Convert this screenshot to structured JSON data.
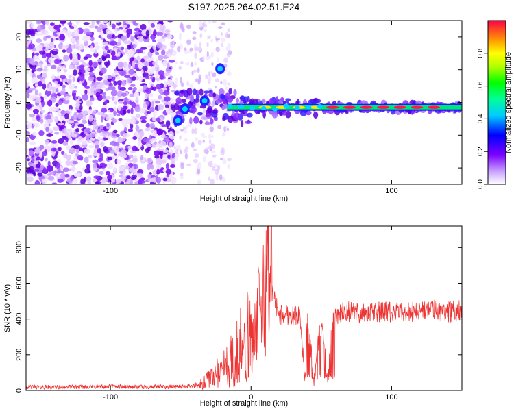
{
  "title": "S197.2025.264.02.51.E24",
  "chart_data": [
    {
      "type": "heatmap",
      "xlabel": "Height of straight line (km)",
      "ylabel": "Frequency (Hz)",
      "xlim": [
        -160,
        150
      ],
      "ylim": [
        -25,
        25
      ],
      "x_ticks": [
        -100,
        0,
        100
      ],
      "y_ticks": [
        -20,
        -10,
        0,
        10,
        20
      ],
      "colorbar": {
        "label": "Normalized spectral amplitude",
        "range": [
          0,
          1
        ],
        "ticks": [
          0.0,
          0.2,
          0.4,
          0.6,
          0.8
        ]
      },
      "features": [
        {
          "name": "carrier-line",
          "x_range": [
            -17,
            150
          ],
          "frequency": -1.5,
          "amplitude": 0.9
        },
        {
          "name": "blob-a",
          "x": -52,
          "frequency": -5.5,
          "amplitude": 0.35
        },
        {
          "name": "blob-b",
          "x": -47,
          "frequency": -2,
          "amplitude": 0.3
        },
        {
          "name": "blob-c",
          "x": -33,
          "frequency": 0.5,
          "amplitude": 0.3
        },
        {
          "name": "blob-d",
          "x": -22,
          "frequency": 10.3,
          "amplitude": 0.25
        }
      ]
    },
    {
      "type": "line",
      "xlabel": "Height of straight line (km)",
      "ylabel": "SNR (10 * v/v)",
      "xlim": [
        -160,
        150
      ],
      "ylim": [
        0,
        920
      ],
      "x_ticks": [
        -100,
        0,
        100
      ],
      "y_ticks": [
        0,
        200,
        400,
        600,
        800
      ],
      "color": "#ee3333",
      "series": [
        {
          "name": "SNR",
          "x": [
            -160,
            -140,
            -120,
            -100,
            -80,
            -60,
            -50,
            -40,
            -35,
            -30,
            -25,
            -20,
            -15,
            -10,
            -5,
            0,
            5,
            10,
            12,
            15,
            20,
            25,
            30,
            35,
            38,
            40,
            45,
            50,
            55,
            58,
            60,
            70,
            80,
            90,
            100,
            110,
            120,
            130,
            140,
            150
          ],
          "values": [
            20,
            18,
            20,
            22,
            20,
            20,
            22,
            25,
            40,
            60,
            100,
            120,
            150,
            180,
            200,
            250,
            420,
            520,
            900,
            550,
            420,
            430,
            420,
            430,
            60,
            400,
            60,
            410,
            60,
            420,
            430,
            440,
            430,
            440,
            435,
            440,
            445,
            450,
            440,
            450
          ]
        }
      ]
    }
  ]
}
